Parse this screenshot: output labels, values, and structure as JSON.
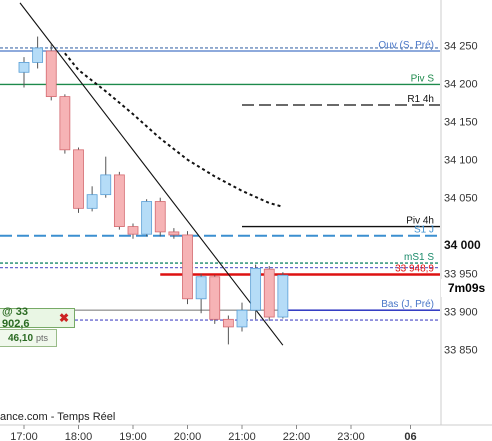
{
  "chart_data": {
    "type": "candlestick",
    "x_ticks": [
      "17:00",
      "18:00",
      "19:00",
      "20:00",
      "21:00",
      "22:00",
      "23:00",
      "06"
    ],
    "y_ticks": [
      34250,
      34200,
      34150,
      34100,
      34050,
      34000,
      33950,
      33900,
      33850
    ],
    "y_highlight": "34 000",
    "ylim": [
      33822,
      34268
    ],
    "candles": [
      {
        "t": 0.0,
        "open": 34215,
        "close": 34228,
        "high": 34235,
        "low": 34195
      },
      {
        "t": 0.25,
        "open": 34228,
        "close": 34247,
        "high": 34262,
        "low": 34220
      },
      {
        "t": 0.5,
        "open": 34243,
        "close": 34183,
        "high": 34252,
        "low": 34178
      },
      {
        "t": 0.75,
        "open": 34183,
        "close": 34113,
        "high": 34186,
        "low": 34108
      },
      {
        "t": 1.0,
        "open": 34113,
        "close": 34036,
        "high": 34116,
        "low": 34030
      },
      {
        "t": 1.25,
        "open": 34036,
        "close": 34054,
        "high": 34065,
        "low": 34032
      },
      {
        "t": 1.5,
        "open": 34054,
        "close": 34080,
        "high": 34104,
        "low": 34050
      },
      {
        "t": 1.75,
        "open": 34080,
        "close": 34012,
        "high": 34084,
        "low": 34008
      },
      {
        "t": 2.0,
        "open": 34012,
        "close": 34002,
        "high": 34016,
        "low": 33996
      },
      {
        "t": 2.25,
        "open": 34002,
        "close": 34045,
        "high": 34048,
        "low": 33999
      },
      {
        "t": 2.5,
        "open": 34045,
        "close": 34005,
        "high": 34050,
        "low": 33999
      },
      {
        "t": 2.75,
        "open": 34005,
        "close": 34001,
        "high": 34010,
        "low": 33996
      },
      {
        "t": 3.0,
        "open": 34001,
        "close": 33917,
        "high": 34006,
        "low": 33910
      },
      {
        "t": 3.25,
        "open": 33917,
        "close": 33946,
        "high": 33950,
        "low": 33898
      },
      {
        "t": 3.5,
        "open": 33946,
        "close": 33890,
        "high": 33948,
        "low": 33884
      },
      {
        "t": 3.75,
        "open": 33890,
        "close": 33880,
        "high": 33895,
        "low": 33857
      },
      {
        "t": 4.0,
        "open": 33880,
        "close": 33902,
        "high": 33912,
        "low": 33874
      },
      {
        "t": 4.25,
        "open": 33902,
        "close": 33957,
        "high": 33962,
        "low": 33890
      },
      {
        "t": 4.5,
        "open": 33956,
        "close": 33893,
        "high": 33960,
        "low": 33888
      },
      {
        "t": 4.75,
        "open": 33893,
        "close": 33948,
        "high": 33952,
        "low": 33891
      }
    ],
    "moving_average": [
      {
        "t": 0.75,
        "v": 34240
      },
      {
        "t": 1.0,
        "v": 34218
      },
      {
        "t": 1.5,
        "v": 34190
      },
      {
        "t": 2.0,
        "v": 34160
      },
      {
        "t": 2.5,
        "v": 34128
      },
      {
        "t": 3.0,
        "v": 34100
      },
      {
        "t": 3.5,
        "v": 34078
      },
      {
        "t": 4.0,
        "v": 34059
      },
      {
        "t": 4.5,
        "v": 34043
      },
      {
        "t": 4.75,
        "v": 34038
      }
    ],
    "trendline": {
      "t1": 0.0,
      "v1": 34280,
      "t2": 4.75,
      "v2": 33856
    },
    "levels": [
      {
        "label": "Ouv (S, Pré)",
        "value": 34243,
        "color": "#4a77c8",
        "style": "solid",
        "label_color": "#4a77c8"
      },
      {
        "label": "",
        "value": 34247,
        "color": "#6688bb",
        "style": "dashed",
        "label_color": "#4a77c8"
      },
      {
        "label": "Piv S",
        "value": 34199,
        "color": "#1e8a4c",
        "style": "solid",
        "label_color": "#1e8a4c"
      },
      {
        "label": "R1 4h",
        "value": 34172,
        "color": "#111111",
        "style": "longdash",
        "label_color": "#111111",
        "from_t": 4.0
      },
      {
        "label": "Piv 4h",
        "value": 34012,
        "color": "#111111",
        "style": "solid",
        "label_color": "#111111",
        "from_t": 4.0
      },
      {
        "label": "S1 J",
        "value": 34000,
        "color": "#3b8fd0",
        "style": "longdash",
        "label_color": "#3b8fd0"
      },
      {
        "label": "mS1 S",
        "value": 33964,
        "color": "#1a8a6a",
        "style": "dashed",
        "label_color": "#1a8a6a"
      },
      {
        "label": "",
        "value": 33958,
        "color": "#6a6ad0",
        "style": "dashed",
        "label_color": "#6a6ad0"
      },
      {
        "label": "33 948,9",
        "value": 33949,
        "color": "#dd1111",
        "style": "solid",
        "label_color": "#dd1111",
        "thick": true,
        "from_t": 2.5
      },
      {
        "label": "Bas (J, Pré)",
        "value": 33902,
        "color": "#1a22bb",
        "style": "solid",
        "label_color": "#4a77c8",
        "from_t": 4.75
      },
      {
        "label": "",
        "value": 33902,
        "color": "#999999",
        "style": "solid",
        "label_color": "#999999",
        "to_t": 4.75
      },
      {
        "label": "",
        "value": 33889,
        "color": "#6a6ad0",
        "style": "dashed",
        "label_color": "#6a6ad0"
      }
    ]
  },
  "order": {
    "price_label": "@ 33 902,6",
    "close_icon": "close-x-icon",
    "points_value": "46,10",
    "points_unit": "pts"
  },
  "timer": "7m09s",
  "attribution": "ance.com - Temps Réel",
  "colors": {
    "bull": "#b5dcf7",
    "bull_border": "#5a9fd6",
    "bear": "#f6b3b5",
    "bear_border": "#d46a70"
  }
}
